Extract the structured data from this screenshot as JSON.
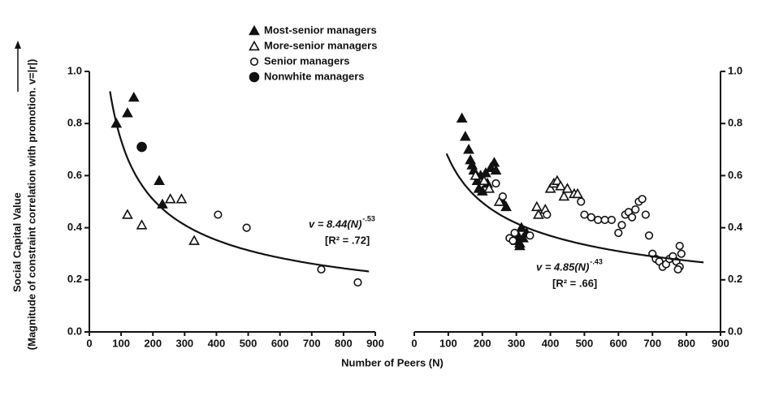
{
  "chart_data": [
    {
      "type": "scatter",
      "xlabel": "Number of Peers (N)",
      "ylabel": [
        "Social Capital Value",
        "(Magnitude of constraint correlation with promotion. v=|r|)"
      ],
      "xlim": [
        0,
        900
      ],
      "ylim": [
        0,
        1
      ],
      "xticks": [
        0,
        100,
        200,
        300,
        400,
        500,
        600,
        700,
        800,
        900
      ],
      "yticks": [
        {
          "value": 0,
          "label": "0.0"
        },
        0.2,
        0.4,
        0.6,
        0.8,
        {
          "value": 1,
          "label": "1.0"
        }
      ],
      "y_axis_side": "left",
      "series": [
        {
          "name": "Most-senior managers",
          "marker": "filled-triangle",
          "color": "#111111",
          "x": [
            85,
            120,
            140,
            220,
            230
          ],
          "y": [
            0.8,
            0.84,
            0.9,
            0.58,
            0.49
          ]
        },
        {
          "name": "More-senior managers",
          "marker": "open-triangle",
          "color": "#111111",
          "x": [
            120,
            165,
            255,
            290,
            330
          ],
          "y": [
            0.45,
            0.41,
            0.51,
            0.51,
            0.35
          ]
        },
        {
          "name": "Senior managers",
          "marker": "open-circle",
          "color": "#111111",
          "x": [
            405,
            495,
            730,
            845
          ],
          "y": [
            0.45,
            0.4,
            0.24,
            0.19
          ]
        },
        {
          "name": "Nonwhite managers",
          "marker": "filled-circle",
          "color": "#111111",
          "x": [
            165
          ],
          "y": [
            0.71
          ]
        }
      ],
      "fit": {
        "coefficient": 8.44,
        "exponent": -0.53,
        "xrange": [
          65,
          880
        ],
        "equation": "v = 8.44(N)",
        "exponent_label": "-.53",
        "r2": "[R² = .72]"
      }
    },
    {
      "type": "scatter",
      "xlim": [
        0,
        900
      ],
      "ylim": [
        0,
        1
      ],
      "xticks": [
        0,
        100,
        200,
        300,
        400,
        500,
        600,
        700,
        800,
        900
      ],
      "yticks": [
        {
          "value": 0,
          "label": "0.0"
        },
        0.2,
        0.4,
        0.6,
        0.8,
        {
          "value": 1,
          "label": "1.0"
        }
      ],
      "y_axis_side": "right",
      "series": [
        {
          "marker": "filled-triangle",
          "color": "#111111",
          "x": [
            140,
            150,
            160,
            165,
            170,
            175,
            185,
            190,
            195,
            200,
            210,
            215,
            225,
            235,
            240,
            260,
            270,
            300,
            305,
            310,
            315,
            320,
            330,
            310
          ],
          "y": [
            0.82,
            0.75,
            0.7,
            0.66,
            0.64,
            0.62,
            0.58,
            0.55,
            0.6,
            0.54,
            0.61,
            0.57,
            0.63,
            0.65,
            0.62,
            0.5,
            0.48,
            0.35,
            0.37,
            0.34,
            0.4,
            0.36,
            0.38,
            0.33
          ]
        },
        {
          "marker": "open-triangle",
          "color": "#111111",
          "x": [
            180,
            205,
            220,
            250,
            360,
            365,
            385,
            400,
            410,
            420,
            430,
            440,
            450,
            470,
            480
          ],
          "y": [
            0.6,
            0.58,
            0.55,
            0.5,
            0.48,
            0.45,
            0.47,
            0.55,
            0.57,
            0.58,
            0.56,
            0.52,
            0.55,
            0.53,
            0.53
          ]
        },
        {
          "marker": "open-circle",
          "color": "#111111",
          "x": [
            240,
            260,
            280,
            290,
            295,
            340,
            390,
            490,
            500,
            520,
            540,
            560,
            580,
            600,
            610,
            620,
            630,
            640,
            650,
            660,
            670,
            680,
            690,
            700,
            710,
            720,
            730,
            740,
            750,
            760,
            770,
            780,
            780,
            785,
            775
          ],
          "y": [
            0.57,
            0.52,
            0.36,
            0.35,
            0.38,
            0.37,
            0.45,
            0.5,
            0.45,
            0.44,
            0.43,
            0.43,
            0.43,
            0.38,
            0.41,
            0.45,
            0.46,
            0.44,
            0.47,
            0.5,
            0.51,
            0.45,
            0.37,
            0.3,
            0.28,
            0.27,
            0.25,
            0.26,
            0.28,
            0.29,
            0.27,
            0.25,
            0.33,
            0.3,
            0.24
          ]
        }
      ],
      "fit": {
        "coefficient": 4.85,
        "exponent": -0.43,
        "xrange": [
          95,
          850
        ],
        "equation": "v = 4.85(N)",
        "exponent_label": "-.43",
        "r2": "[R² = .66]"
      }
    }
  ]
}
